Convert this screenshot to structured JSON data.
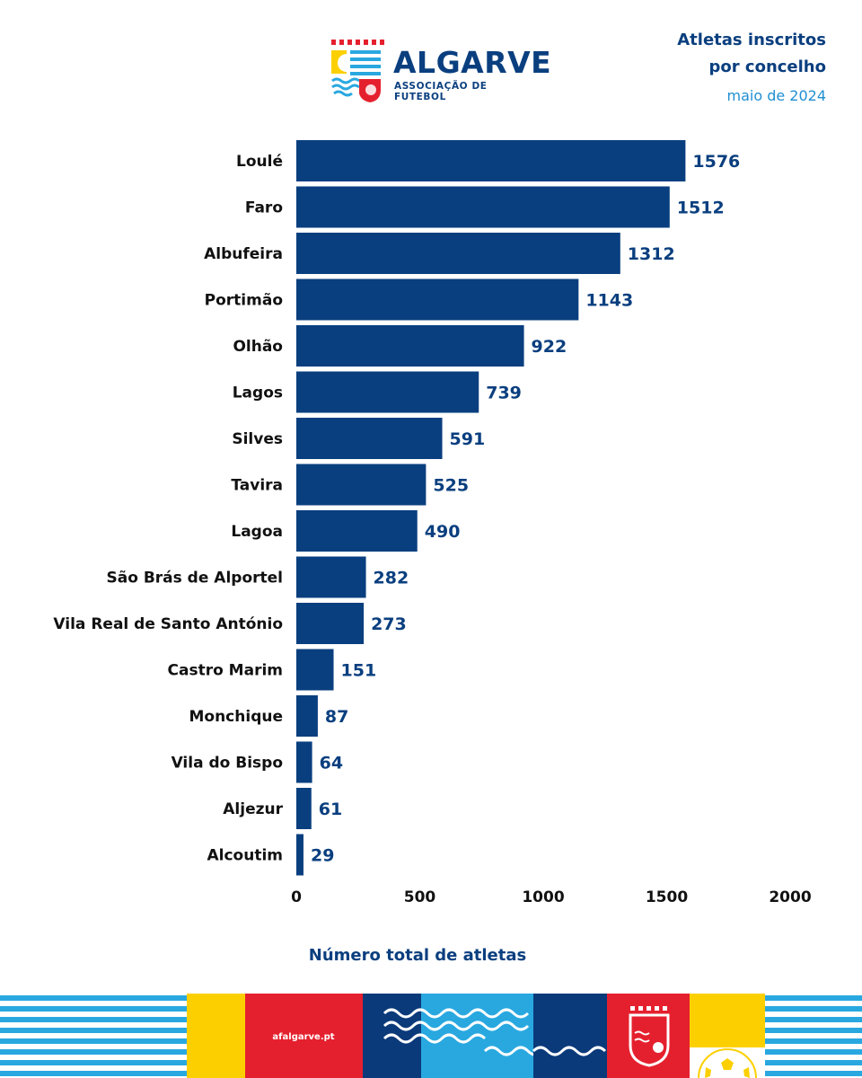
{
  "header": {
    "logo_name": "ALGARVE",
    "logo_subtitle": "ASSOCIAÇÃO DE FUTEBOL",
    "title_line1": "Atletas inscritos",
    "title_line2": "por concelho",
    "date": "maio de 2024"
  },
  "footer": {
    "website": "afalgarve.pt"
  },
  "colors": {
    "bar": "#0a3f7f",
    "label_text": "#111111",
    "value_text": "#0a3f7f",
    "accent_blue": "#1f8fd2",
    "light_blue": "#29a8e0",
    "yellow": "#fcd000",
    "red": "#e5202e",
    "navy": "#0b3a7a"
  },
  "chart_data": {
    "type": "bar",
    "orientation": "horizontal",
    "categories": [
      "Loulé",
      "Faro",
      "Albufeira",
      "Portimão",
      "Olhão",
      "Lagos",
      "Silves",
      "Tavira",
      "Lagoa",
      "São Brás de Alportel",
      "Vila Real de Santo António",
      "Castro Marim",
      "Monchique",
      "Vila do Bispo",
      "Aljezur",
      "Alcoutim"
    ],
    "values": [
      1576,
      1512,
      1312,
      1143,
      922,
      739,
      591,
      525,
      490,
      282,
      273,
      151,
      87,
      64,
      61,
      29
    ],
    "xlabel": "Número total de atletas",
    "ylabel": "",
    "xlim": [
      0,
      2000
    ],
    "xticks": [
      0,
      500,
      1000,
      1500,
      2000
    ],
    "data_labels": true,
    "grid": false,
    "legend": "none"
  }
}
